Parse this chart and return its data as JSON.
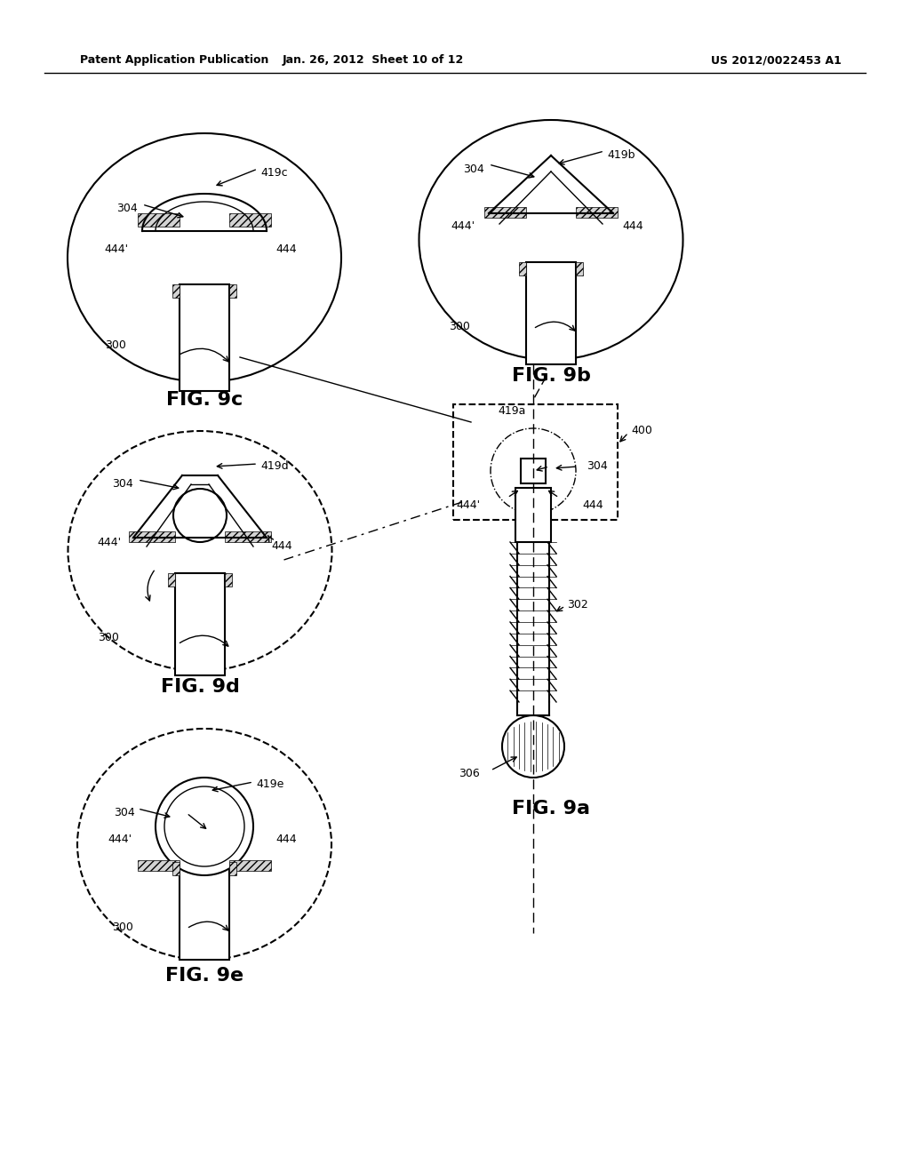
{
  "bg_color": "#ffffff",
  "line_color": "#000000",
  "header_left": "Patent Application Publication",
  "header_mid": "Jan. 26, 2012  Sheet 10 of 12",
  "header_right": "US 2012/0022453 A1",
  "fig_labels": {
    "9a": "FIG. 9a",
    "9b": "FIG. 9b",
    "9c": "FIG. 9c",
    "9d": "FIG. 9d",
    "9e": "FIG. 9e"
  },
  "ref_numbers": {
    "300": "300",
    "302": "302",
    "304": "304",
    "306": "306",
    "400": "400",
    "419a": "419a",
    "419b": "419b",
    "419c": "419c",
    "419d": "419d",
    "419e": "419e",
    "444": "444",
    "444p": "444'"
  }
}
